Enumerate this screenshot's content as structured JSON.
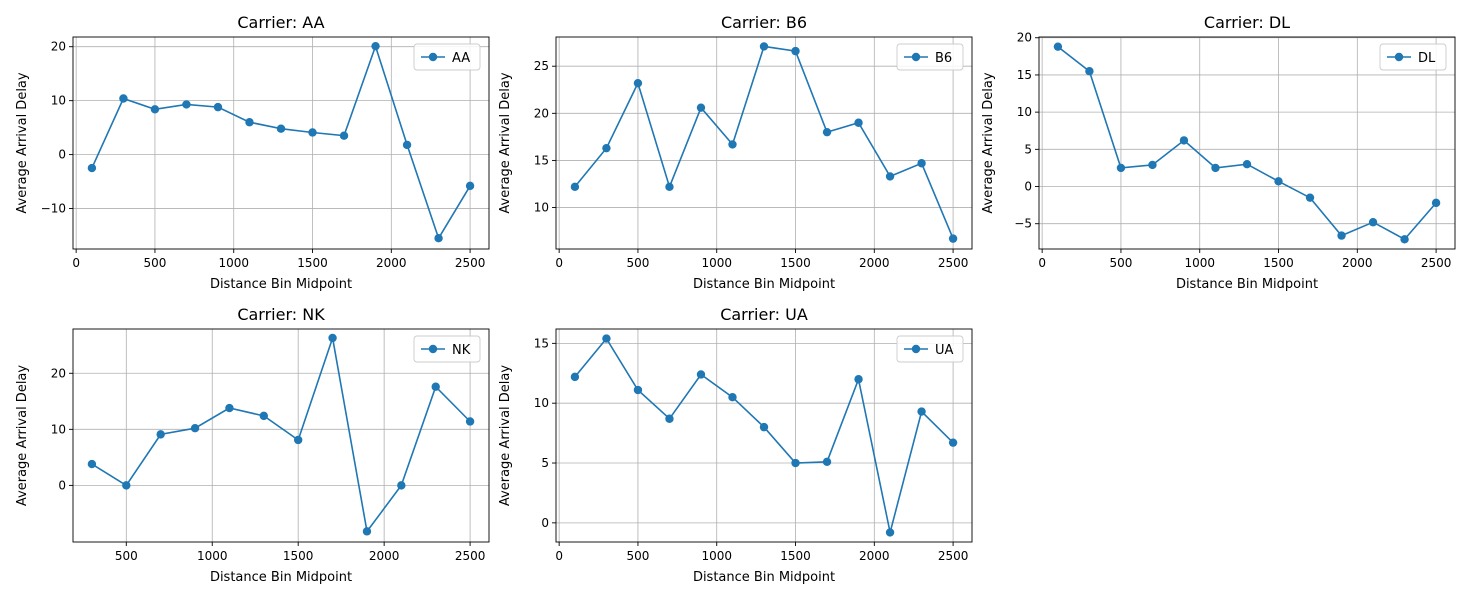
{
  "chart_data": [
    {
      "type": "line",
      "title": "Carrier: AA",
      "xlabel": "Distance Bin Midpoint",
      "ylabel": "Average Arrival Delay",
      "grid": true,
      "legend_position": "top-right",
      "color": "#1f77b4",
      "xlim": [
        -20,
        2620
      ],
      "ylim": [
        -17.5,
        21.8
      ],
      "xticks": [
        0,
        500,
        1000,
        1500,
        2000,
        2500
      ],
      "yticks": [
        -10,
        0,
        10,
        20
      ],
      "series": [
        {
          "name": "AA",
          "x": [
            100,
            300,
            500,
            700,
            900,
            1100,
            1300,
            1500,
            1700,
            1900,
            2100,
            2300,
            2500
          ],
          "y": [
            -2.5,
            10.4,
            8.4,
            9.3,
            8.8,
            6.0,
            4.8,
            4.1,
            3.5,
            20.1,
            1.8,
            -15.5,
            -5.8
          ]
        }
      ]
    },
    {
      "type": "line",
      "title": "Carrier: B6",
      "xlabel": "Distance Bin Midpoint",
      "ylabel": "Average Arrival Delay",
      "grid": true,
      "legend_position": "top-right",
      "color": "#1f77b4",
      "xlim": [
        -20,
        2620
      ],
      "ylim": [
        5.6,
        28.1
      ],
      "xticks": [
        0,
        500,
        1000,
        1500,
        2000,
        2500
      ],
      "yticks": [
        10,
        15,
        20,
        25
      ],
      "series": [
        {
          "name": "B6",
          "x": [
            100,
            300,
            500,
            700,
            900,
            1100,
            1300,
            1500,
            1700,
            1900,
            2100,
            2300,
            2500
          ],
          "y": [
            12.2,
            16.3,
            23.2,
            12.2,
            20.6,
            16.7,
            27.1,
            26.6,
            18.0,
            19.0,
            13.3,
            14.7,
            6.7
          ]
        }
      ]
    },
    {
      "type": "line",
      "title": "Carrier: DL",
      "xlabel": "Distance Bin Midpoint",
      "ylabel": "Average Arrival Delay",
      "grid": true,
      "legend_position": "top-right",
      "color": "#1f77b4",
      "xlim": [
        -20,
        2620
      ],
      "ylim": [
        -8.4,
        20.1
      ],
      "xticks": [
        0,
        500,
        1000,
        1500,
        2000,
        2500
      ],
      "yticks": [
        -5,
        0,
        5,
        10,
        15,
        20
      ],
      "series": [
        {
          "name": "DL",
          "x": [
            100,
            300,
            500,
            700,
            900,
            1100,
            1300,
            1500,
            1700,
            1900,
            2100,
            2300,
            2500
          ],
          "y": [
            18.8,
            15.5,
            2.5,
            2.9,
            6.2,
            2.5,
            3.0,
            0.7,
            -1.5,
            -6.6,
            -4.8,
            -7.1,
            -2.2
          ]
        }
      ]
    },
    {
      "type": "line",
      "title": "Carrier: NK",
      "xlabel": "Distance Bin Midpoint",
      "ylabel": "Average Arrival Delay",
      "grid": true,
      "legend_position": "top-right",
      "color": "#1f77b4",
      "xlim": [
        190,
        2610
      ],
      "ylim": [
        -10.1,
        27.9
      ],
      "xticks": [
        500,
        1000,
        1500,
        2000,
        2500
      ],
      "yticks": [
        0,
        10,
        20
      ],
      "series": [
        {
          "name": "NK",
          "x": [
            300,
            500,
            700,
            900,
            1100,
            1300,
            1500,
            1700,
            1900,
            2100,
            2300,
            2500
          ],
          "y": [
            3.8,
            0.0,
            9.1,
            10.2,
            13.8,
            12.4,
            8.1,
            26.3,
            -8.2,
            0.0,
            17.6,
            11.4
          ]
        }
      ]
    },
    {
      "type": "line",
      "title": "Carrier: UA",
      "xlabel": "Distance Bin Midpoint",
      "ylabel": "Average Arrival Delay",
      "grid": true,
      "legend_position": "top-right",
      "color": "#1f77b4",
      "xlim": [
        -20,
        2620
      ],
      "ylim": [
        -1.6,
        16.2
      ],
      "xticks": [
        0,
        500,
        1000,
        1500,
        2000,
        2500
      ],
      "yticks": [
        0,
        5,
        10,
        15
      ],
      "series": [
        {
          "name": "UA",
          "x": [
            100,
            300,
            500,
            700,
            900,
            1100,
            1300,
            1500,
            1700,
            1900,
            2100,
            2300,
            2500
          ],
          "y": [
            12.2,
            15.4,
            11.1,
            8.7,
            12.4,
            10.5,
            8.0,
            5.0,
            5.1,
            12.0,
            -0.8,
            9.3,
            6.7
          ]
        }
      ]
    }
  ]
}
